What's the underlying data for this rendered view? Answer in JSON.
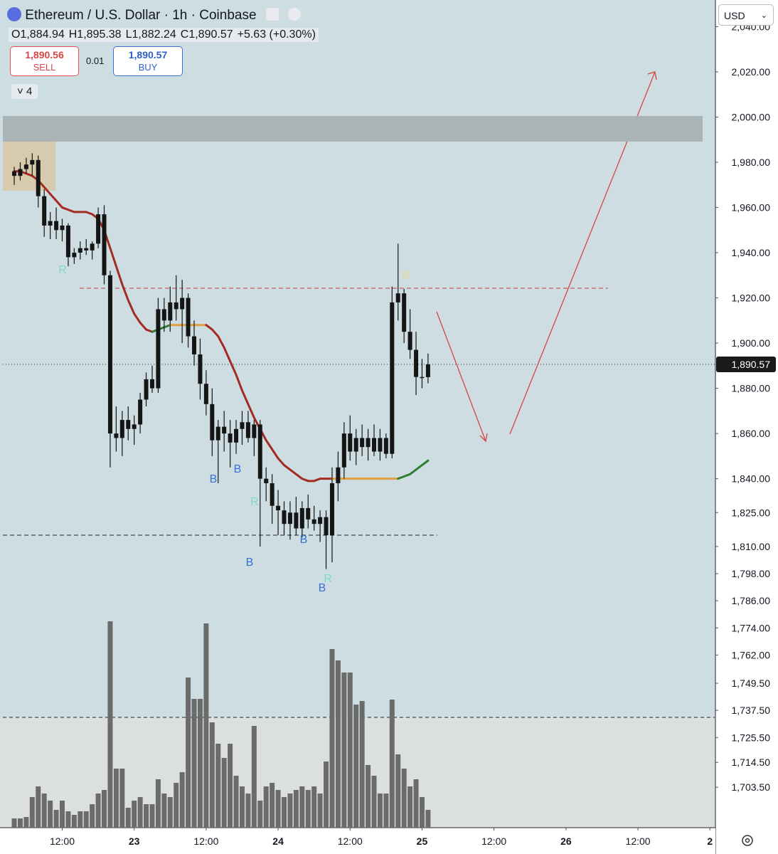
{
  "header": {
    "title": "Ethereum / U.S. Dollar · 1h · Coinbase",
    "ohlc": [
      {
        "k": "O",
        "v": "1,884.94"
      },
      {
        "k": "H",
        "v": "1,895.38"
      },
      {
        "k": "L",
        "v": "1,882.24"
      },
      {
        "k": "C",
        "v": "1,890.57"
      }
    ],
    "change": "+5.63 (+0.30%)"
  },
  "trade": {
    "sell_price": "1,890.56",
    "sell": "SELL",
    "spread": "0.01",
    "buy_price": "1,890.57",
    "buy": "BUY",
    "indicators": "4",
    "currency": "USD"
  },
  "chart_data": {
    "type": "candlestick",
    "open": [
      1976,
      1974,
      1977,
      1979,
      1981,
      1965,
      1952,
      1954,
      1950,
      1952,
      1938,
      1940,
      1942,
      1941,
      1944,
      1957,
      1930,
      1860,
      1858,
      1866,
      1862,
      1864,
      1875,
      1884,
      1880,
      1915,
      1910,
      1918,
      1915,
      1920,
      1903,
      1895,
      1882,
      1873,
      1857,
      1863,
      1860,
      1856,
      1862,
      1865,
      1858,
      1864,
      1840,
      1838,
      1828,
      1826,
      1820,
      1825,
      1818,
      1827,
      1822,
      1820,
      1823,
      1815,
      1838,
      1845,
      1860,
      1852,
      1858,
      1854,
      1858,
      1852,
      1858,
      1851,
      1918,
      1922,
      1905,
      1897,
      1885,
      1884.94
    ],
    "high": [
      1978,
      1980,
      1982,
      1984,
      1983,
      1968,
      1958,
      1960,
      1955,
      1953,
      1942,
      1945,
      1946,
      1945,
      1960,
      1961,
      1932,
      1872,
      1870,
      1872,
      1868,
      1878,
      1887,
      1890,
      1920,
      1920,
      1925,
      1930,
      1928,
      1922,
      1910,
      1902,
      1888,
      1880,
      1866,
      1870,
      1866,
      1866,
      1870,
      1870,
      1866,
      1866,
      1845,
      1842,
      1835,
      1830,
      1830,
      1832,
      1830,
      1833,
      1828,
      1826,
      1826,
      1845,
      1852,
      1865,
      1868,
      1862,
      1864,
      1862,
      1864,
      1862,
      1860,
      1925,
      1944,
      1924,
      1915,
      1905,
      1893,
      1895.38
    ],
    "low": [
      1970,
      1972,
      1975,
      1974,
      1960,
      1947,
      1946,
      1946,
      1945,
      1934,
      1935,
      1937,
      1939,
      1937,
      1942,
      1926,
      1845,
      1852,
      1850,
      1857,
      1855,
      1860,
      1872,
      1878,
      1878,
      1905,
      1905,
      1910,
      1900,
      1898,
      1890,
      1875,
      1868,
      1850,
      1838,
      1852,
      1845,
      1851,
      1855,
      1856,
      1850,
      1810,
      1830,
      1820,
      1815,
      1815,
      1813,
      1815,
      1814,
      1818,
      1817,
      1812,
      1800,
      1803,
      1830,
      1840,
      1848,
      1846,
      1850,
      1848,
      1850,
      1848,
      1849,
      1849,
      1910,
      1900,
      1893,
      1877,
      1880,
      1882.24
    ],
    "close": [
      1974,
      1977,
      1979,
      1981,
      1965,
      1952,
      1954,
      1950,
      1952,
      1938,
      1940,
      1942,
      1941,
      1944,
      1957,
      1930,
      1860,
      1858,
      1866,
      1862,
      1864,
      1875,
      1884,
      1880,
      1915,
      1910,
      1918,
      1915,
      1920,
      1903,
      1895,
      1882,
      1873,
      1857,
      1863,
      1860,
      1856,
      1862,
      1865,
      1858,
      1864,
      1840,
      1838,
      1828,
      1826,
      1820,
      1825,
      1818,
      1827,
      1822,
      1820,
      1823,
      1815,
      1838,
      1845,
      1860,
      1852,
      1858,
      1854,
      1858,
      1852,
      1858,
      1851,
      1918,
      1922,
      1905,
      1897,
      1885,
      1884.94,
      1890.57
    ],
    "volume": [
      13,
      13,
      15,
      43,
      58,
      48,
      38,
      25,
      38,
      23,
      18,
      23,
      23,
      33,
      48,
      53,
      290,
      83,
      83,
      28,
      38,
      43,
      33,
      33,
      68,
      48,
      43,
      63,
      78,
      211,
      181,
      181,
      287,
      148,
      118,
      98,
      118,
      73,
      58,
      48,
      143,
      38,
      58,
      63,
      53,
      43,
      48,
      53,
      58,
      53,
      58,
      48,
      93,
      251,
      235,
      218,
      218,
      173,
      178,
      88,
      73,
      48,
      48,
      180,
      103,
      83,
      58,
      68,
      43,
      25
    ],
    "ma": [
      1976,
      1976,
      1975,
      1974,
      1972,
      1969,
      1966,
      1963,
      1960,
      1959,
      1958,
      1958,
      1958,
      1957,
      1955,
      1950,
      1942,
      1934,
      1926,
      1919,
      1913,
      1909,
      1906,
      1905,
      1906,
      1907,
      1908,
      1908,
      1908,
      1908,
      1908,
      1908,
      1908,
      1906,
      1903,
      1898,
      1892,
      1886,
      1879,
      1873,
      1867,
      1862,
      1857,
      1853,
      1849,
      1846,
      1844,
      1842,
      1840,
      1839,
      1839,
      1840,
      1840,
      1840,
      1840,
      1840,
      1840,
      1840,
      1840,
      1840,
      1840,
      1840,
      1840,
      1840,
      1840,
      1841,
      1842,
      1844,
      1846,
      1848
    ],
    "ma_segments": [
      {
        "from": 0,
        "to": 23,
        "color": "#a52a22"
      },
      {
        "from": 23,
        "to": 26,
        "color": "#2e7d32"
      },
      {
        "from": 26,
        "to": 32,
        "color": "#e0a040"
      },
      {
        "from": 32,
        "to": 53,
        "color": "#a52a22"
      },
      {
        "from": 53,
        "to": 64,
        "color": "#e0a040"
      },
      {
        "from": 64,
        "to": 69,
        "color": "#2e7d32"
      }
    ],
    "colors": {
      "candle": "#151515",
      "volume": "#6b6b6b"
    },
    "ylim": [
      1685.6,
      2051.8
    ],
    "yticks": [
      {
        "value": 2040,
        "label": "2,040.00"
      },
      {
        "value": 2020,
        "label": "2,020.00"
      },
      {
        "value": 2000,
        "label": "2,000.00"
      },
      {
        "value": 1980,
        "label": "1,980.00"
      },
      {
        "value": 1960,
        "label": "1,960.00"
      },
      {
        "value": 1940,
        "label": "1,940.00"
      },
      {
        "value": 1920,
        "label": "1,920.00"
      },
      {
        "value": 1900,
        "label": "1,900.00"
      },
      {
        "value": 1880,
        "label": "1,880.00"
      },
      {
        "value": 1860,
        "label": "1,860.00"
      },
      {
        "value": 1840,
        "label": "1,840.00"
      },
      {
        "value": 1825,
        "label": "1,825.00"
      },
      {
        "value": 1810,
        "label": "1,810.00"
      },
      {
        "value": 1798,
        "label": "1,798.00"
      },
      {
        "value": 1786,
        "label": "1,786.00"
      },
      {
        "value": 1774,
        "label": "1,774.00"
      },
      {
        "value": 1762,
        "label": "1,762.00"
      },
      {
        "value": 1749.5,
        "label": "1,749.50"
      },
      {
        "value": 1737.5,
        "label": "1,737.50"
      },
      {
        "value": 1725.5,
        "label": "1,725.50"
      },
      {
        "value": 1714.5,
        "label": "1,714.50"
      },
      {
        "value": 1703.5,
        "label": "1,703.50"
      }
    ],
    "xlim": [
      -1.9,
      116.8
    ],
    "xticks": [
      {
        "value": 8,
        "label": "12:00"
      },
      {
        "value": 20,
        "label": "23"
      },
      {
        "value": 32,
        "label": "12:00"
      },
      {
        "value": 44,
        "label": "24"
      },
      {
        "value": 56,
        "label": "12:00"
      },
      {
        "value": 68,
        "label": "25"
      },
      {
        "value": 80,
        "label": "12:00"
      },
      {
        "value": 92,
        "label": "26"
      },
      {
        "value": 104,
        "label": "12:00"
      },
      {
        "value": 116,
        "label": "2"
      }
    ],
    "last_price_label": "1,890.57",
    "markers": [
      {
        "label": "R",
        "color": "#7fd8c8"
      },
      {
        "label": "B",
        "color": "#3b6fd4"
      },
      {
        "label": "B",
        "color": "#3b6fd4"
      },
      {
        "label": "R",
        "color": "#7fd8c8"
      },
      {
        "label": "B",
        "color": "#3b6fd4"
      },
      {
        "label": "B",
        "color": "#3b6fd4"
      },
      {
        "label": "B",
        "color": "#3b6fd4"
      },
      {
        "label": "R",
        "color": "#7fd8c8"
      },
      {
        "label": "R",
        "color": "#e6d98a"
      }
    ]
  }
}
